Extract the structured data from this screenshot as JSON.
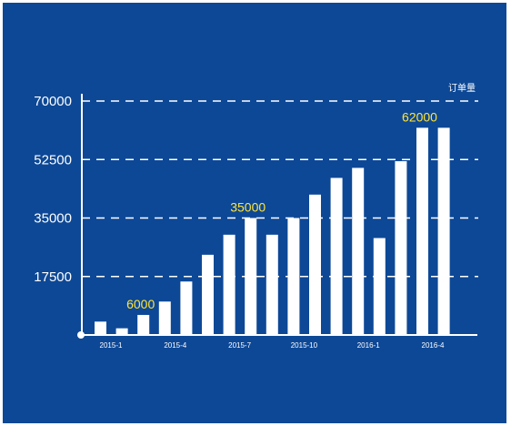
{
  "colors": {
    "background": "#0d4896",
    "bars": "#ffffff",
    "grid": "#ffffff",
    "highlight_labels": "#ffe438"
  },
  "chart_data": {
    "type": "bar",
    "unit_label": "订单量",
    "ylim": [
      0,
      70000
    ],
    "y_ticks": [
      "70000",
      "52500",
      "35000",
      "17500"
    ],
    "y_tick_values": [
      70000,
      52500,
      35000,
      17500
    ],
    "grid": true,
    "grid_style": "dashed",
    "categories": [
      "2015-1",
      "2015-2",
      "2015-3",
      "2015-4",
      "2015-5",
      "2015-6",
      "2015-7",
      "2015-8",
      "2015-9",
      "2015-10",
      "2015-11",
      "2015-12",
      "2016-1",
      "2016-2",
      "2016-3",
      "2016-4",
      "2016-5"
    ],
    "x_tick_labels": [
      "2015-1",
      "2015-4",
      "2015-7",
      "2015-10",
      "2016-1",
      "2016-4"
    ],
    "values": [
      4000,
      2000,
      6000,
      10000,
      16000,
      24000,
      30000,
      35000,
      30000,
      35000,
      42000,
      47000,
      50000,
      29000,
      52000,
      62000,
      62000
    ],
    "data_labels": [
      {
        "index": 2,
        "text": "6000"
      },
      {
        "index": 7,
        "text": "35000"
      },
      {
        "index": 15,
        "text": "62000"
      }
    ]
  }
}
